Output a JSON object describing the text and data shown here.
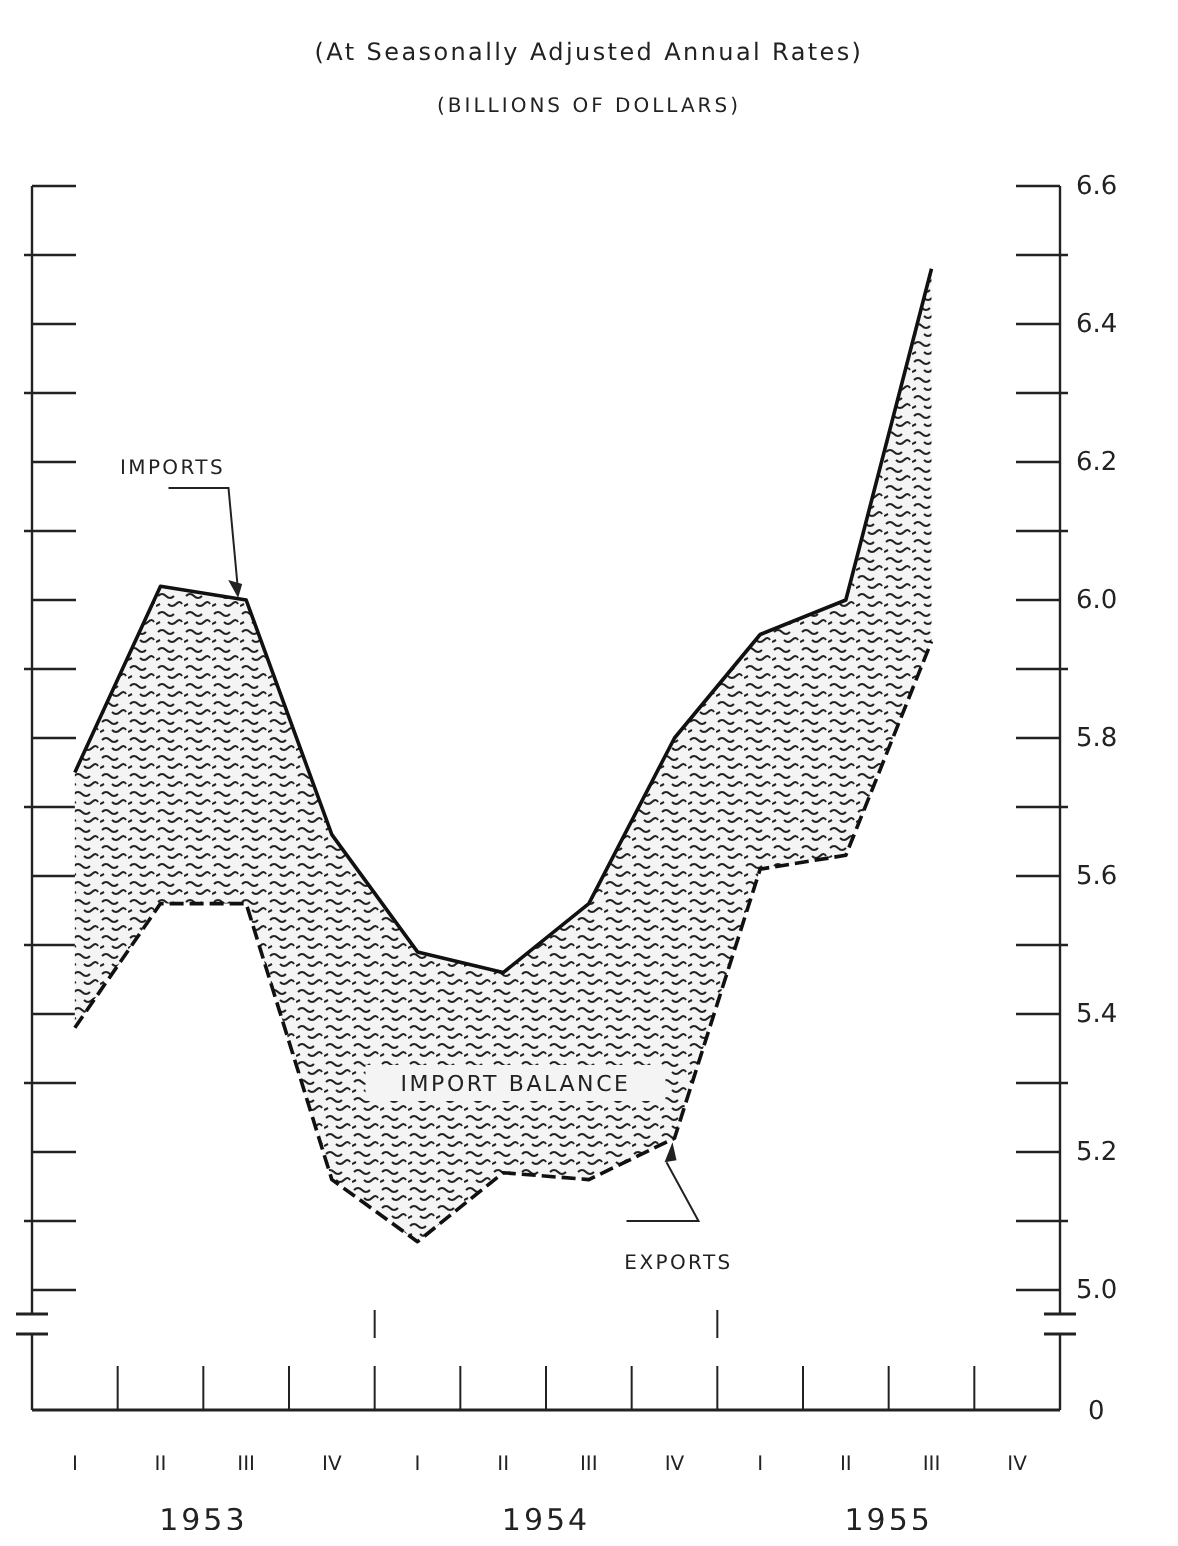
{
  "chart_data": {
    "type": "line",
    "title": "(At Seasonally Adjusted Annual Rates)",
    "subtitle": "(BILLIONS OF DOLLARS)",
    "categories": [
      "I",
      "II",
      "III",
      "IV",
      "I",
      "II",
      "III",
      "IV",
      "I",
      "II",
      "III",
      "IV"
    ],
    "series": [
      {
        "color": "#111111",
        "line_style": "solid",
        "values": [
          5.75,
          6.02,
          6.0,
          5.66,
          5.49,
          5.46,
          5.56,
          5.8,
          5.95,
          6.0,
          6.48,
          null
        ],
        "lower": [
          5.38,
          5.56,
          5.56,
          5.16,
          5.07,
          5.17,
          5.16,
          5.22,
          5.61,
          5.63,
          5.94,
          null
        ],
        "upper": [
          5.75,
          6.02,
          6.0,
          5.66,
          5.49,
          5.46,
          5.56,
          5.8,
          5.95,
          6.0,
          6.48,
          null
        ]
      },
      {
        "color": "#111111",
        "line_style": "dashed",
        "values": [
          5.38,
          5.56,
          5.56,
          5.16,
          5.07,
          5.17,
          5.16,
          5.22,
          5.61,
          5.63,
          5.94,
          null
        ]
      }
    ],
    "ylim": [
      5.0,
      6.6
    ],
    "yticks": [
      {
        "value": 5.0,
        "label": "5.0"
      },
      {
        "value": 5.2,
        "label": "5.2"
      },
      {
        "value": 5.4,
        "label": "5.4"
      },
      {
        "value": 5.6,
        "label": "5.6"
      },
      {
        "value": 5.8,
        "label": "5.8"
      },
      {
        "value": 6.0,
        "label": "6.0"
      },
      {
        "value": 6.2,
        "label": "6.2"
      },
      {
        "value": 6.4,
        "label": "6.4"
      },
      {
        "value": 6.6,
        "label": "6.6"
      }
    ],
    "annotations": [
      {
        "text": "IMPORTS",
        "x": "III",
        "y": 6.0
      },
      "IMPORT BALANCE",
      "EXPORTS",
      "0",
      "1953",
      "1954",
      "1955"
    ],
    "grid": false,
    "marker": "none"
  }
}
